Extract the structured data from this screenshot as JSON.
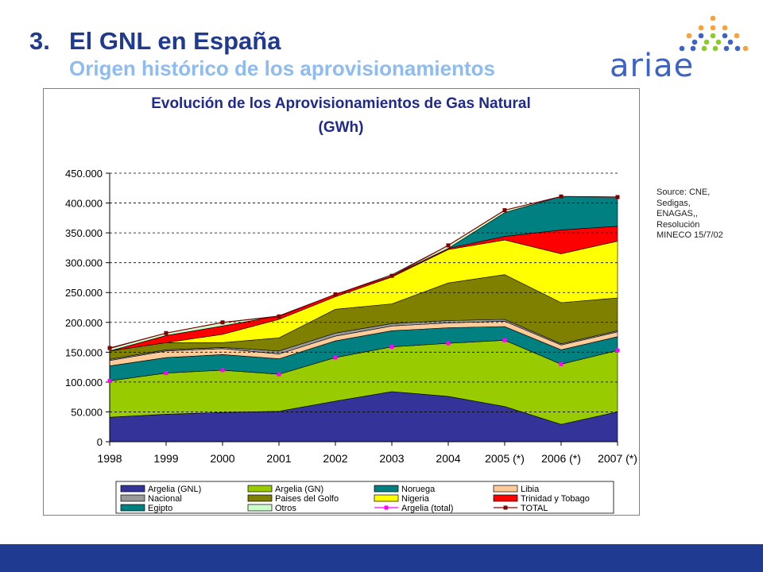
{
  "slide": {
    "number": "3.",
    "title": "El GNL en España",
    "subtitle": "Origen histórico de los aprovisionamientos",
    "logo_text": "ariae",
    "source_lines": [
      "Source: CNE,",
      "Sedigas,",
      "ENAGAS,,",
      "Resolución",
      "MINECO 15/7/02"
    ]
  },
  "colors": {
    "title": "#1f3a8f",
    "subtitle": "#8fbcf0",
    "footer_bar": "#1e3a91",
    "logo_orange": "#f7a23b",
    "logo_blue": "#3e63c4",
    "logo_green": "#8ccb2b"
  },
  "chart_data": {
    "type": "area",
    "stacked": true,
    "title_lines": [
      "Evolución de los Aprovisionamientos de Gas Natural",
      "(GWh)"
    ],
    "xlabel": "",
    "ylabel": "",
    "ylim": [
      0,
      450000
    ],
    "y_ticks": [
      0,
      50000,
      100000,
      150000,
      200000,
      250000,
      300000,
      350000,
      400000,
      450000
    ],
    "y_tick_labels": [
      "0",
      "50.000",
      "100.000",
      "150.000",
      "200.000",
      "250.000",
      "300.000",
      "350.000",
      "400.000",
      "450.000"
    ],
    "grid": "horizontal dashed",
    "legend_position": "bottom",
    "categories": [
      "1998",
      "1999",
      "2000",
      "2001",
      "2002",
      "2003",
      "2004",
      "2005 (*)",
      "2006 (*)",
      "2007 (*)"
    ],
    "series": [
      {
        "name": "Argelia (GNL)",
        "color": "#333399",
        "values": [
          41000,
          46000,
          49000,
          51000,
          68000,
          84000,
          76000,
          59000,
          29000,
          50000
        ]
      },
      {
        "name": "Argelia (GN)",
        "color": "#99cc00",
        "values": [
          61000,
          69000,
          71000,
          62000,
          73000,
          75000,
          89000,
          111000,
          101000,
          103000
        ]
      },
      {
        "name": "Noruega",
        "color": "#008080",
        "values": [
          25000,
          26000,
          26000,
          26000,
          28000,
          27000,
          26000,
          23000,
          24000,
          23000
        ]
      },
      {
        "name": "Libia",
        "color": "#ffcc99",
        "values": [
          9000,
          11000,
          10000,
          8000,
          8000,
          8000,
          8000,
          9000,
          8000,
          8000
        ]
      },
      {
        "name": "Nacional",
        "color": "#999999",
        "values": [
          2000,
          2000,
          2000,
          5000,
          5000,
          4000,
          4000,
          3000,
          2000,
          2000
        ]
      },
      {
        "name": "Paises del Golfo",
        "color": "#808000",
        "values": [
          14000,
          12000,
          8000,
          22000,
          40000,
          33000,
          63000,
          75000,
          69000,
          55000
        ]
      },
      {
        "name": "Nigeria",
        "color": "#ffff00",
        "values": [
          0,
          0,
          14000,
          31000,
          21000,
          45000,
          56000,
          58000,
          82000,
          95000
        ]
      },
      {
        "name": "Trinidad y Tobago",
        "color": "#ff0000",
        "values": [
          0,
          12000,
          14000,
          6000,
          4000,
          2000,
          2000,
          6000,
          40000,
          25000
        ]
      },
      {
        "name": "Egipto",
        "color": "#008080",
        "values": [
          0,
          0,
          0,
          0,
          0,
          0,
          0,
          40000,
          56000,
          49000
        ]
      },
      {
        "name": "Otros",
        "color": "#ccffcc",
        "values": [
          4000,
          4000,
          6000,
          0,
          0,
          2000,
          5000,
          4000,
          0,
          0
        ]
      }
    ],
    "lines": [
      {
        "name": "Argelia (total)",
        "color": "#ff00ff",
        "values": [
          102000,
          115000,
          120000,
          113000,
          141000,
          159000,
          165000,
          170000,
          130000,
          153000
        ]
      },
      {
        "name": "TOTAL",
        "color": "#800000",
        "values": [
          157000,
          182000,
          200000,
          210000,
          247000,
          278000,
          329000,
          388000,
          411000,
          410000
        ]
      }
    ]
  }
}
